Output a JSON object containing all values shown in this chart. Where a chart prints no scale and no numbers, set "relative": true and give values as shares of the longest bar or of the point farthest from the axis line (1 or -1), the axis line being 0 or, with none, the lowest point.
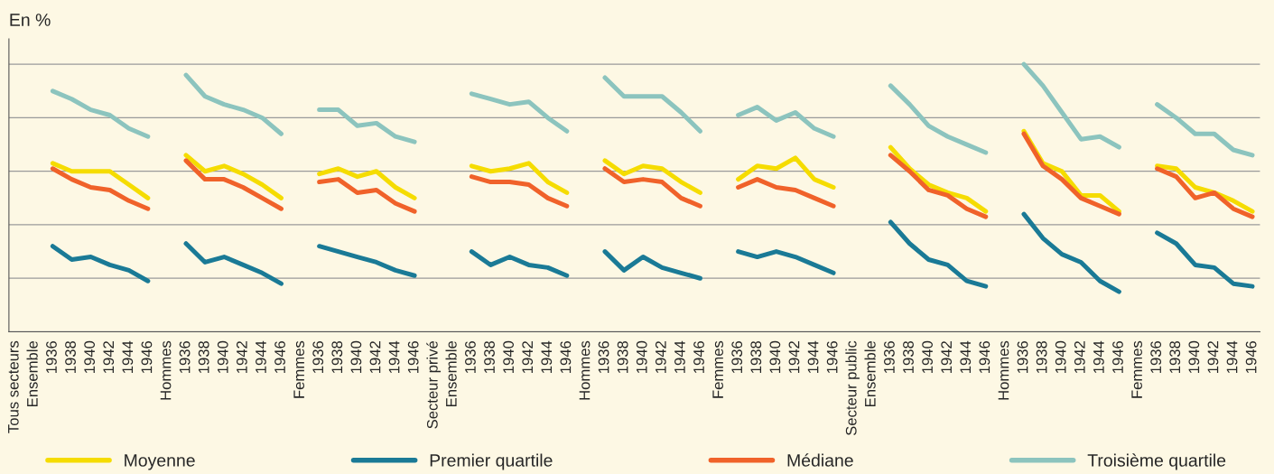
{
  "chart_data": {
    "type": "line",
    "relative": true,
    "ylabel": "En %",
    "grid": "y",
    "legend": "bottom",
    "marker": "none",
    "line_style": "solid",
    "categories": [
      "Tous secteurs",
      "Ensemble",
      "1936",
      "1938",
      "1940",
      "1942",
      "1944",
      "1946",
      "Hommes",
      "1936",
      "1938",
      "1940",
      "1942",
      "1944",
      "1946",
      "Femmes",
      "1936",
      "1938",
      "1940",
      "1942",
      "1944",
      "1946",
      "Secteur privé",
      "Ensemble",
      "1936",
      "1938",
      "1940",
      "1942",
      "1944",
      "1946",
      "Hommes",
      "1936",
      "1938",
      "1940",
      "1942",
      "1944",
      "1946",
      "Femmes",
      "1936",
      "1938",
      "1940",
      "1942",
      "1944",
      "1946",
      "Secteur public",
      "Ensemble",
      "1936",
      "1938",
      "1940",
      "1942",
      "1944",
      "1946",
      "Hommes",
      "1936",
      "1938",
      "1940",
      "1942",
      "1944",
      "1946",
      "Femmes",
      "1936",
      "1938",
      "1940",
      "1942",
      "1944",
      "1946"
    ],
    "series": [
      {
        "name": "Moyenne",
        "color": "#f5dc00",
        "values": [
          null,
          null,
          0.63,
          0.6,
          0.6,
          0.6,
          0.55,
          0.5,
          null,
          0.66,
          0.6,
          0.62,
          0.59,
          0.55,
          0.5,
          null,
          0.59,
          0.61,
          0.58,
          0.6,
          0.54,
          0.5,
          null,
          null,
          0.62,
          0.6,
          0.61,
          0.63,
          0.56,
          0.52,
          null,
          0.64,
          0.59,
          0.62,
          0.61,
          0.56,
          0.52,
          null,
          0.57,
          0.62,
          0.61,
          0.65,
          0.57,
          0.54,
          null,
          null,
          0.69,
          0.61,
          0.55,
          0.52,
          0.5,
          0.45,
          null,
          0.75,
          0.63,
          0.6,
          0.51,
          0.51,
          0.45,
          null,
          0.62,
          0.61,
          0.54,
          0.52,
          0.49,
          0.45
        ]
      },
      {
        "name": "Premier quartile",
        "color": "#1a7a96",
        "values": [
          null,
          null,
          0.32,
          0.27,
          0.28,
          0.25,
          0.23,
          0.19,
          null,
          0.33,
          0.26,
          0.28,
          0.25,
          0.22,
          0.18,
          null,
          0.32,
          0.3,
          0.28,
          0.26,
          0.23,
          0.21,
          null,
          null,
          0.3,
          0.25,
          0.28,
          0.25,
          0.24,
          0.21,
          null,
          0.3,
          0.23,
          0.28,
          0.24,
          0.22,
          0.2,
          null,
          0.3,
          0.28,
          0.3,
          0.28,
          0.25,
          0.22,
          null,
          null,
          0.41,
          0.33,
          0.27,
          0.25,
          0.19,
          0.17,
          null,
          0.44,
          0.35,
          0.29,
          0.26,
          0.19,
          0.15,
          null,
          0.37,
          0.33,
          0.25,
          0.24,
          0.18,
          0.17
        ]
      },
      {
        "name": "Médiane",
        "color": "#f0622a",
        "values": [
          null,
          null,
          0.61,
          0.57,
          0.54,
          0.53,
          0.49,
          0.46,
          null,
          0.64,
          0.57,
          0.57,
          0.54,
          0.5,
          0.46,
          null,
          0.56,
          0.57,
          0.52,
          0.53,
          0.48,
          0.45,
          null,
          null,
          0.58,
          0.56,
          0.56,
          0.55,
          0.5,
          0.47,
          null,
          0.61,
          0.56,
          0.57,
          0.56,
          0.5,
          0.47,
          null,
          0.54,
          0.57,
          0.54,
          0.53,
          0.5,
          0.47,
          null,
          null,
          0.66,
          0.6,
          0.53,
          0.51,
          0.46,
          0.43,
          null,
          0.74,
          0.62,
          0.57,
          0.5,
          0.47,
          0.44,
          null,
          0.61,
          0.58,
          0.5,
          0.52,
          0.46,
          0.43
        ]
      },
      {
        "name": "Troisième quartile",
        "color": "#8cc4be",
        "values": [
          null,
          null,
          0.9,
          0.87,
          0.83,
          0.81,
          0.76,
          0.73,
          null,
          0.96,
          0.88,
          0.85,
          0.83,
          0.8,
          0.74,
          null,
          0.83,
          0.83,
          0.77,
          0.78,
          0.73,
          0.71,
          null,
          null,
          0.89,
          0.87,
          0.85,
          0.86,
          0.8,
          0.75,
          null,
          0.95,
          0.88,
          0.88,
          0.88,
          0.82,
          0.75,
          null,
          0.81,
          0.84,
          0.79,
          0.82,
          0.76,
          0.73,
          null,
          null,
          0.92,
          0.85,
          0.77,
          0.73,
          0.7,
          0.67,
          null,
          1.0,
          0.92,
          0.82,
          0.72,
          0.73,
          0.69,
          null,
          0.85,
          0.8,
          0.74,
          0.74,
          0.68,
          0.66
        ]
      }
    ]
  }
}
